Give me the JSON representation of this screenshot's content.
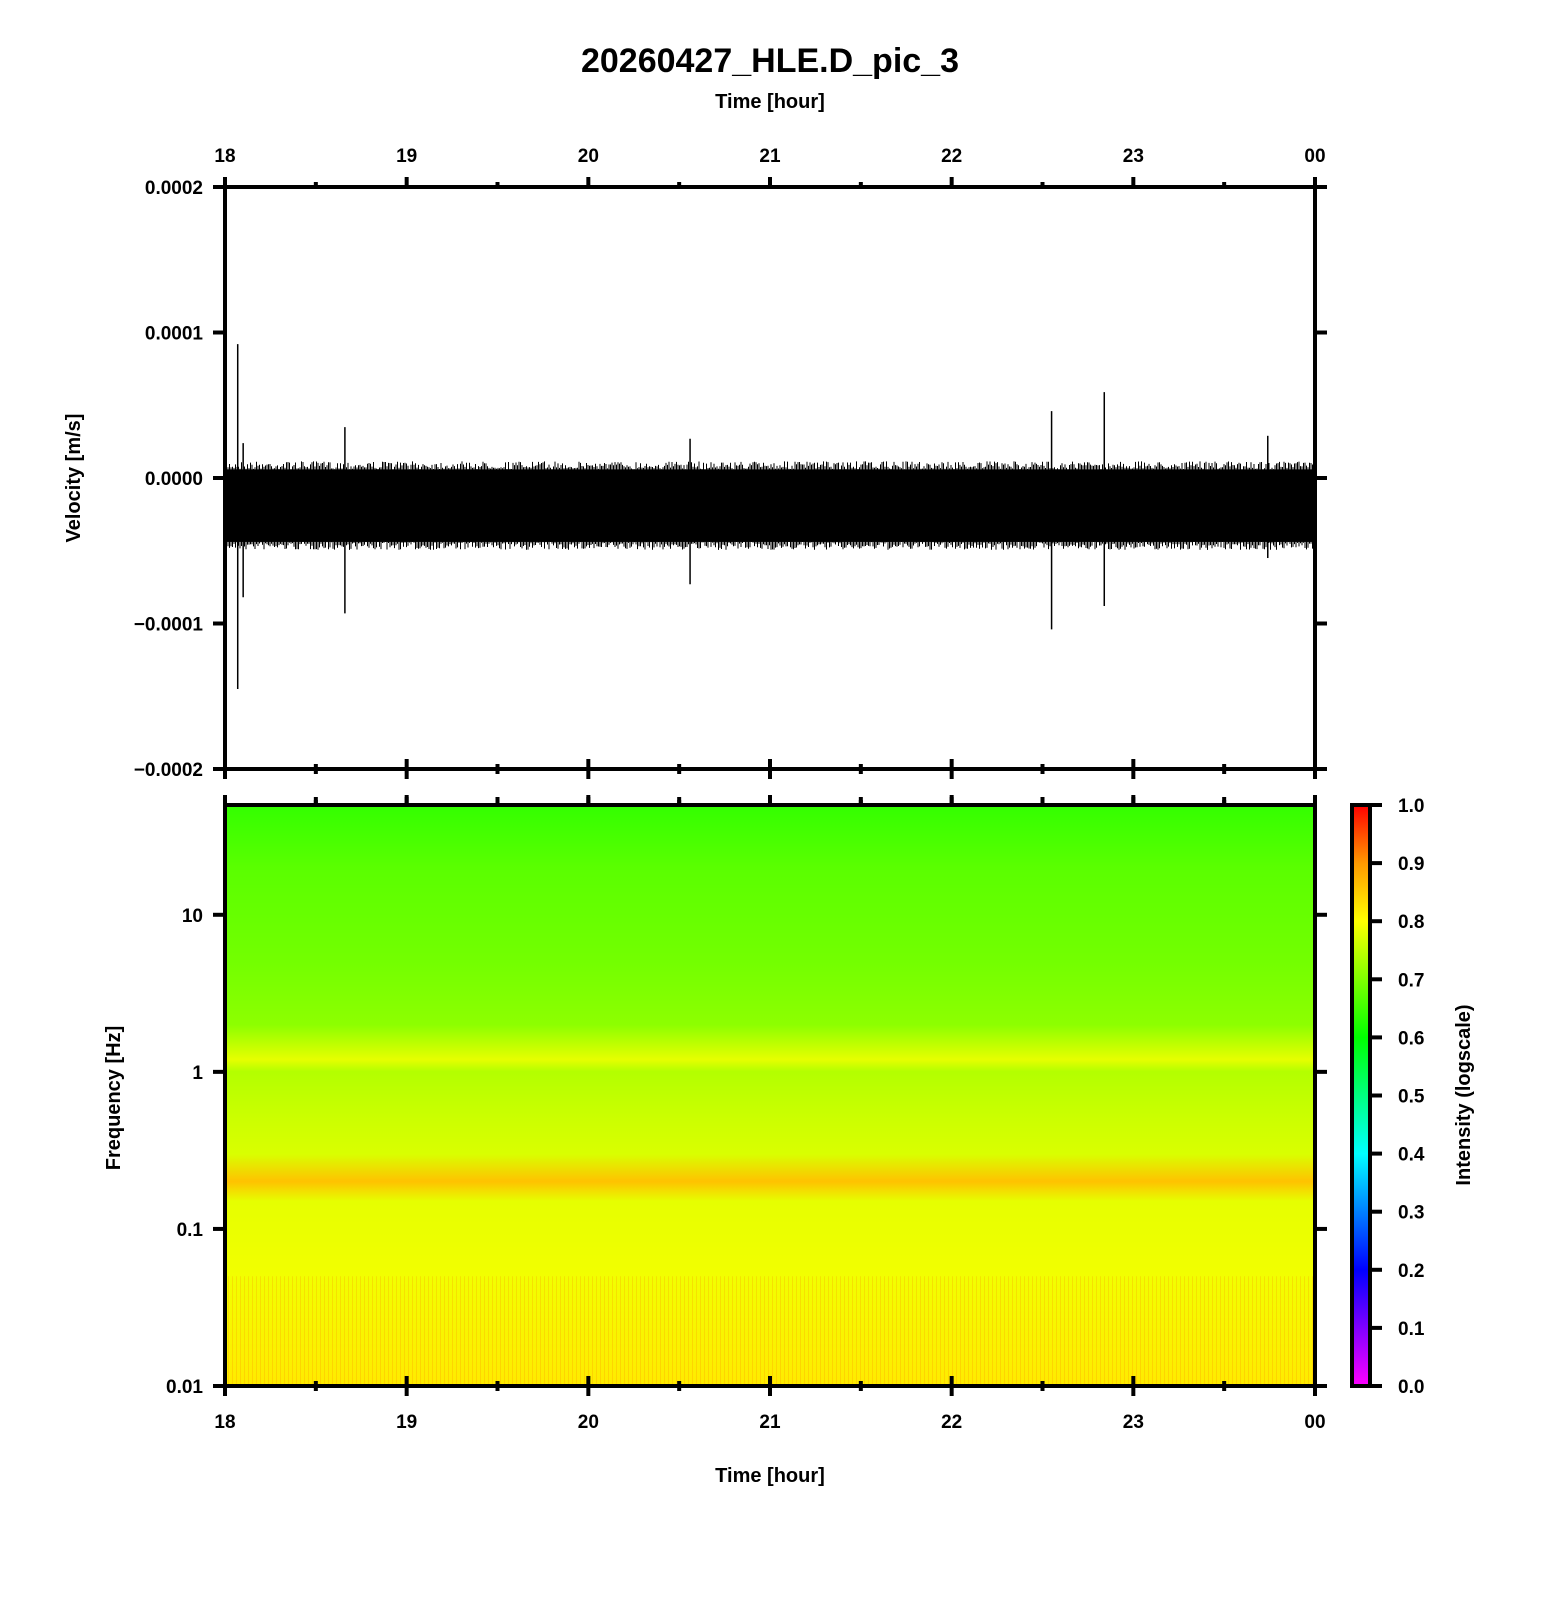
{
  "chart_data": [
    {
      "type": "line",
      "title": "20260427_HLE.D_pic_3",
      "xlabel": "Time [hour]",
      "ylabel": "Velocity [m/s]",
      "xlim": [
        18,
        24
      ],
      "ylim": [
        -0.0002,
        0.0002
      ],
      "x_ticks": [
        "18",
        "19",
        "20",
        "21",
        "22",
        "23",
        "00"
      ],
      "y_ticks": [
        "0.0002",
        "0.0001",
        "0.0000",
        "−0.0001",
        "−0.0002"
      ],
      "y_tick_values": [
        0.0002,
        0.0001,
        0,
        -0.0001,
        -0.0002
      ],
      "noise_band": {
        "upper": 8e-06,
        "lower": -4.6e-05
      },
      "spikes": [
        {
          "x": 18.07,
          "max": 9.2e-05,
          "min": -0.000145
        },
        {
          "x": 18.1,
          "max": 2.4e-05,
          "min": -8.2e-05
        },
        {
          "x": 18.66,
          "max": 3.5e-05,
          "min": -9.3e-05
        },
        {
          "x": 20.56,
          "max": 2.7e-05,
          "min": -7.3e-05
        },
        {
          "x": 22.55,
          "max": 4.6e-05,
          "min": -0.000104
        },
        {
          "x": 22.84,
          "max": 5.9e-05,
          "min": -8.8e-05
        },
        {
          "x": 23.74,
          "max": 2.9e-05,
          "min": -5.5e-05
        }
      ],
      "grid": false
    },
    {
      "type": "heatmap",
      "xlabel": "Time [hour]",
      "ylabel": "Frequency [Hz]",
      "xlim": [
        18,
        24
      ],
      "ylim": [
        0.01,
        50
      ],
      "yscale": "log",
      "x_ticks": [
        "18",
        "19",
        "20",
        "21",
        "22",
        "23",
        "00"
      ],
      "y_ticks": [
        "10",
        "1",
        "0.1",
        "0.01"
      ],
      "y_tick_values": [
        10,
        1,
        0.1,
        0.01
      ],
      "intensity_profile": [
        {
          "freq": 50,
          "intensity": 0.64
        },
        {
          "freq": 20,
          "intensity": 0.67
        },
        {
          "freq": 5,
          "intensity": 0.69
        },
        {
          "freq": 2,
          "intensity": 0.71
        },
        {
          "freq": 1.2,
          "intensity": 0.78
        },
        {
          "freq": 1,
          "intensity": 0.74
        },
        {
          "freq": 0.5,
          "intensity": 0.76
        },
        {
          "freq": 0.3,
          "intensity": 0.77
        },
        {
          "freq": 0.2,
          "intensity": 0.86
        },
        {
          "freq": 0.15,
          "intensity": 0.78
        },
        {
          "freq": 0.05,
          "intensity": 0.79
        },
        {
          "freq": 0.01,
          "intensity": 0.82
        }
      ],
      "colorbar": {
        "label": "Intensity (logscale)",
        "range": [
          0,
          1
        ],
        "ticks": [
          "0.0",
          "0.1",
          "0.2",
          "0.3",
          "0.4",
          "0.5",
          "0.6",
          "0.7",
          "0.8",
          "0.9",
          "1.0"
        ],
        "colors": [
          "#ff00ff",
          "#8000ff",
          "#0000ff",
          "#0080ff",
          "#00ffff",
          "#00ff80",
          "#00ff00",
          "#80ff00",
          "#ffff00",
          "#ff9900",
          "#ff0000"
        ]
      }
    }
  ]
}
